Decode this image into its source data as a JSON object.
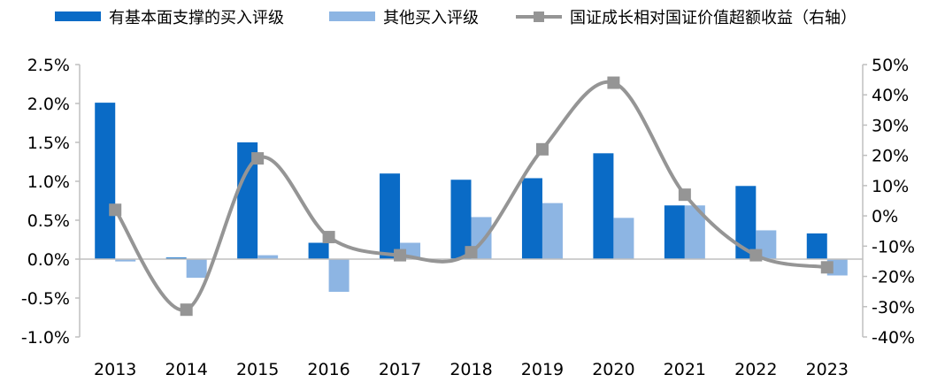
{
  "chart_data": {
    "type": "bar",
    "categories": [
      "2013",
      "2014",
      "2015",
      "2016",
      "2017",
      "2018",
      "2019",
      "2020",
      "2021",
      "2022",
      "2023"
    ],
    "series": [
      {
        "name": "有基本面支撑的买入评级",
        "axis": "left",
        "kind": "bar",
        "color": "#0a6bc6",
        "values": [
          0.0201,
          0.0002,
          0.015,
          0.0021,
          0.011,
          0.0102,
          0.0104,
          0.0136,
          0.0069,
          0.0094,
          0.0033
        ]
      },
      {
        "name": "其他买入评级",
        "axis": "left",
        "kind": "bar",
        "color": "#8db5e3",
        "values": [
          -0.0003,
          -0.0024,
          0.0005,
          -0.0042,
          0.0021,
          0.0054,
          0.0072,
          0.0053,
          0.0069,
          0.0037,
          -0.0021
        ]
      },
      {
        "name": "国证成长相对国证价值超额收益（右轴）",
        "axis": "right",
        "kind": "line",
        "color": "#959595",
        "values": [
          0.02,
          -0.31,
          0.19,
          -0.07,
          -0.13,
          -0.12,
          0.22,
          0.44,
          0.07,
          -0.13,
          -0.17
        ]
      }
    ],
    "left_axis": {
      "ylim": [
        -0.01,
        0.025
      ],
      "ticks": [
        0.025,
        0.02,
        0.015,
        0.01,
        0.005,
        0.0,
        -0.005,
        -0.01
      ],
      "tick_labels": [
        "2.5%",
        "2.0%",
        "1.5%",
        "1.0%",
        "0.5%",
        "0.0%",
        "-0.5%",
        "-1.0%"
      ]
    },
    "right_axis": {
      "ylim": [
        -0.4,
        0.5
      ],
      "ticks": [
        0.5,
        0.4,
        0.3,
        0.2,
        0.1,
        0.0,
        -0.1,
        -0.2,
        -0.3,
        -0.4
      ],
      "tick_labels": [
        "50%",
        "40%",
        "30%",
        "20%",
        "10%",
        "0%",
        "-10%",
        "-20%",
        "-30%",
        "-40%"
      ]
    },
    "grid": false,
    "legend_position": "top"
  }
}
